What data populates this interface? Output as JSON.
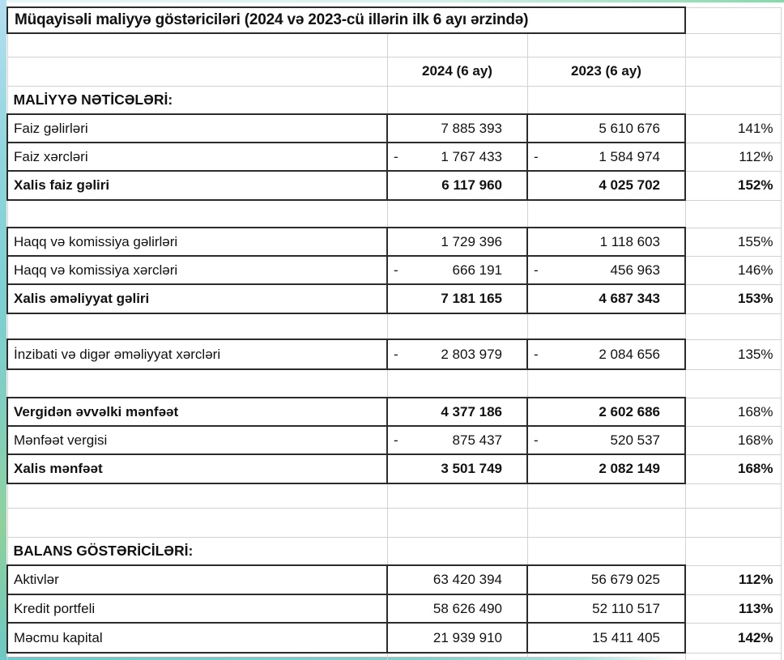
{
  "sheet": {
    "title": "Müqayisəli maliyyə göstəriciləri (2024 və 2023-cü illərin ilk 6 ayı ərzində)"
  },
  "format": {
    "negative_sign": "-"
  },
  "colors": {
    "block_border": "#2b2b2b",
    "grid_line": "#d2d2d2",
    "text": "#111111",
    "edge_blue": "#abdcec",
    "edge_teal": "#7ecfd2",
    "edge_green": "#8fd09c"
  },
  "rows": [
    {
      "kind": "title",
      "label": "Müqayisəli maliyyə göstəriciləri (2024 və 2023-cü illərin ilk 6 ayı ərzində)"
    },
    {
      "kind": "spacer"
    },
    {
      "kind": "header",
      "v2024": "2024 (6 ay)",
      "v2023": "2023 (6 ay)"
    },
    {
      "kind": "section",
      "label": "MALİYYƏ NƏTİCƏLƏRİ:"
    },
    {
      "kind": "data",
      "label": "Faiz gəlirləri",
      "negative": false,
      "v2024": "7 885 393",
      "v2023": "5 610 676",
      "pct": "141%",
      "bold_label": false,
      "bold_values": false,
      "bold_pct": false
    },
    {
      "kind": "data",
      "label": "Faiz xərcləri",
      "negative": true,
      "v2024": "1 767 433",
      "v2023": "1 584 974",
      "pct": "112%",
      "bold_label": false,
      "bold_values": false,
      "bold_pct": false
    },
    {
      "kind": "data",
      "label": "Xalis faiz gəliri",
      "negative": false,
      "v2024": "6 117 960",
      "v2023": "4 025 702",
      "pct": "152%",
      "bold_label": true,
      "bold_values": true,
      "bold_pct": true
    },
    {
      "kind": "spacer"
    },
    {
      "kind": "data",
      "label": "Haqq və komissiya gəlirləri",
      "negative": false,
      "v2024": "1 729 396",
      "v2023": "1 118 603",
      "pct": "155%",
      "bold_label": false,
      "bold_values": false,
      "bold_pct": false
    },
    {
      "kind": "data",
      "label": "Haqq və komissiya xərcləri",
      "negative": true,
      "v2024": "666 191",
      "v2023": "456 963",
      "pct": "146%",
      "bold_label": false,
      "bold_values": false,
      "bold_pct": false
    },
    {
      "kind": "data",
      "label": "Xalis əməliyyat gəliri",
      "negative": false,
      "v2024": "7 181 165",
      "v2023": "4 687 343",
      "pct": "153%",
      "bold_label": true,
      "bold_values": true,
      "bold_pct": true
    },
    {
      "kind": "spacer"
    },
    {
      "kind": "data",
      "label": "İnzibati və digər əməliyyat xərcləri",
      "negative": true,
      "v2024": "2 803 979",
      "v2023": "2 084 656",
      "pct": "135%",
      "bold_label": false,
      "bold_values": false,
      "bold_pct": false
    },
    {
      "kind": "spacer"
    },
    {
      "kind": "data",
      "label": "Vergidən əvvəlki mənfəət",
      "negative": false,
      "v2024": "4 377 186",
      "v2023": "2 602 686",
      "pct": "168%",
      "bold_label": true,
      "bold_values": true,
      "bold_pct": false
    },
    {
      "kind": "data",
      "label": "Mənfəət vergisi",
      "negative": true,
      "v2024": "875 437",
      "v2023": "520 537",
      "pct": "168%",
      "bold_label": false,
      "bold_values": false,
      "bold_pct": false
    },
    {
      "kind": "data",
      "label": "Xalis mənfəət",
      "negative": false,
      "v2024": "3 501 749",
      "v2023": "2 082 149",
      "pct": "168%",
      "bold_label": true,
      "bold_values": true,
      "bold_pct": true
    },
    {
      "kind": "spacer"
    },
    {
      "kind": "spacer"
    },
    {
      "kind": "section",
      "label": "BALANS GÖSTƏRİCİLƏRİ:"
    },
    {
      "kind": "data",
      "label": "Aktivlər",
      "negative": false,
      "v2024": "63 420 394",
      "v2023": "56 679 025",
      "pct": "112%",
      "bold_label": false,
      "bold_values": false,
      "bold_pct": true
    },
    {
      "kind": "data",
      "label": "Kredit portfeli",
      "negative": false,
      "v2024": "58 626 490",
      "v2023": "52 110 517",
      "pct": "113%",
      "bold_label": false,
      "bold_values": false,
      "bold_pct": true
    },
    {
      "kind": "data",
      "label": "Məcmu kapital",
      "negative": false,
      "v2024": "21 939 910",
      "v2023": "15 411 405",
      "pct": "142%",
      "bold_label": false,
      "bold_values": false,
      "bold_pct": true
    },
    {
      "kind": "spacer"
    }
  ]
}
